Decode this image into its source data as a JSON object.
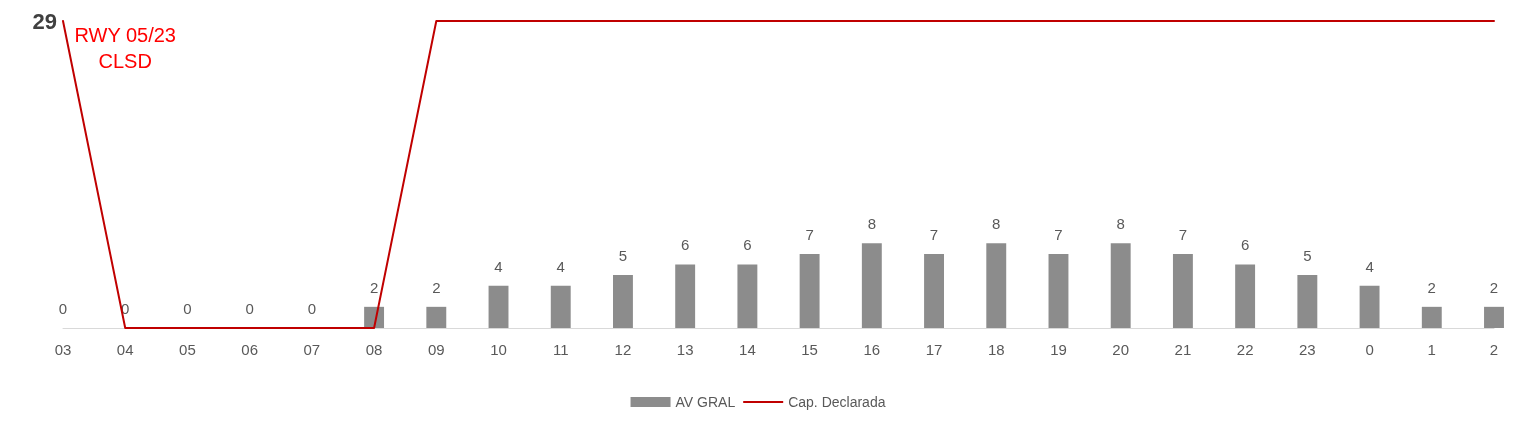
{
  "chart_data": {
    "type": "bar",
    "categories": [
      "03",
      "04",
      "05",
      "06",
      "07",
      "08",
      "09",
      "10",
      "11",
      "12",
      "13",
      "14",
      "15",
      "16",
      "17",
      "18",
      "19",
      "20",
      "21",
      "22",
      "23",
      "0",
      "1",
      "2"
    ],
    "series": [
      {
        "name": "AV GRAL",
        "color": "#8c8c8c",
        "data_labels": true,
        "values": [
          0,
          0,
          0,
          0,
          0,
          2,
          2,
          4,
          4,
          5,
          6,
          6,
          7,
          8,
          7,
          8,
          7,
          8,
          7,
          6,
          5,
          4,
          2,
          2
        ]
      },
      {
        "name": "Cap. Declarada",
        "type": "line",
        "color": "#c00000",
        "marker": "none",
        "line_style": "solid",
        "value_labels": [
          "29",
          null,
          null,
          null,
          null,
          null,
          null,
          null,
          null,
          null,
          null,
          null,
          null,
          null,
          null,
          null,
          null,
          null,
          null,
          null,
          null,
          null,
          null,
          null
        ],
        "values": [
          29,
          0,
          0,
          0,
          0,
          0,
          29,
          29,
          29,
          29,
          29,
          29,
          29,
          29,
          29,
          29,
          29,
          29,
          29,
          29,
          29,
          29,
          29,
          29
        ]
      }
    ],
    "grid": false,
    "legend": "bottom",
    "annotations": [
      "RWY 05/23\nCLSD"
    ]
  }
}
